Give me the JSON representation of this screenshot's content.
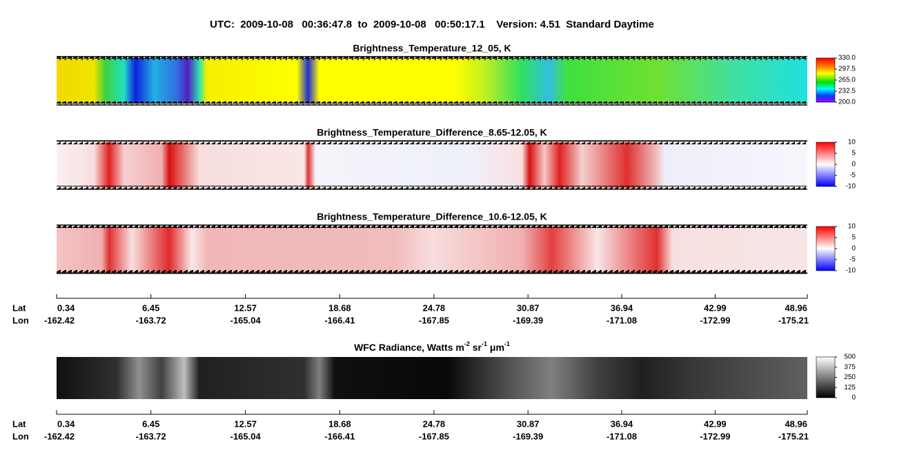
{
  "title": "UTC:  2009-10-08   00:36:47.8  to  2009-10-08   00:50:17.1    Version: 4.51  Standard Daytime",
  "panels": [
    {
      "title": "Brightness_Temperature_12_05, K",
      "colorbar_ticks": [
        {
          "value": 330,
          "label": "330.0"
        },
        297.5,
        {
          "value": 265,
          "label": "265.0"
        },
        232.5,
        {
          "value": 200,
          "label": "200.0"
        }
      ]
    },
    {
      "title": "Brightness_Temperature_Difference_8.65-12.05, K",
      "colorbar_ticks": [
        10,
        5,
        0,
        -5,
        -10
      ]
    },
    {
      "title": "Brightness_Temperature_Difference_10.6-12.05, K",
      "colorbar_ticks": [
        10,
        5,
        0,
        -5,
        -10
      ]
    }
  ],
  "wfc_panel": {
    "title_segments": [
      "WFC Radiance, Watts m",
      "-2",
      " sr",
      "-1",
      " μm",
      "-1"
    ],
    "colorbar_ticks": [
      500,
      375,
      250,
      125,
      0
    ]
  },
  "axes": [
    {
      "lat_label": "Lat",
      "lon_label": "Lon",
      "lat": [
        0.34,
        6.45,
        12.57,
        18.68,
        24.78,
        30.87,
        36.94,
        42.99,
        48.96
      ],
      "lon": [
        -162.42,
        -163.72,
        -165.04,
        -166.41,
        -167.85,
        -169.39,
        -171.08,
        -172.99,
        -175.21
      ]
    },
    {
      "lat_label": "Lat",
      "lon_label": "Lon",
      "lat": [
        0.34,
        6.45,
        12.57,
        18.68,
        24.78,
        30.87,
        36.94,
        42.99,
        48.96
      ],
      "lon": [
        -162.42,
        -163.72,
        -165.04,
        -166.41,
        -167.85,
        -169.39,
        -171.08,
        -172.99,
        -175.21
      ]
    }
  ]
}
